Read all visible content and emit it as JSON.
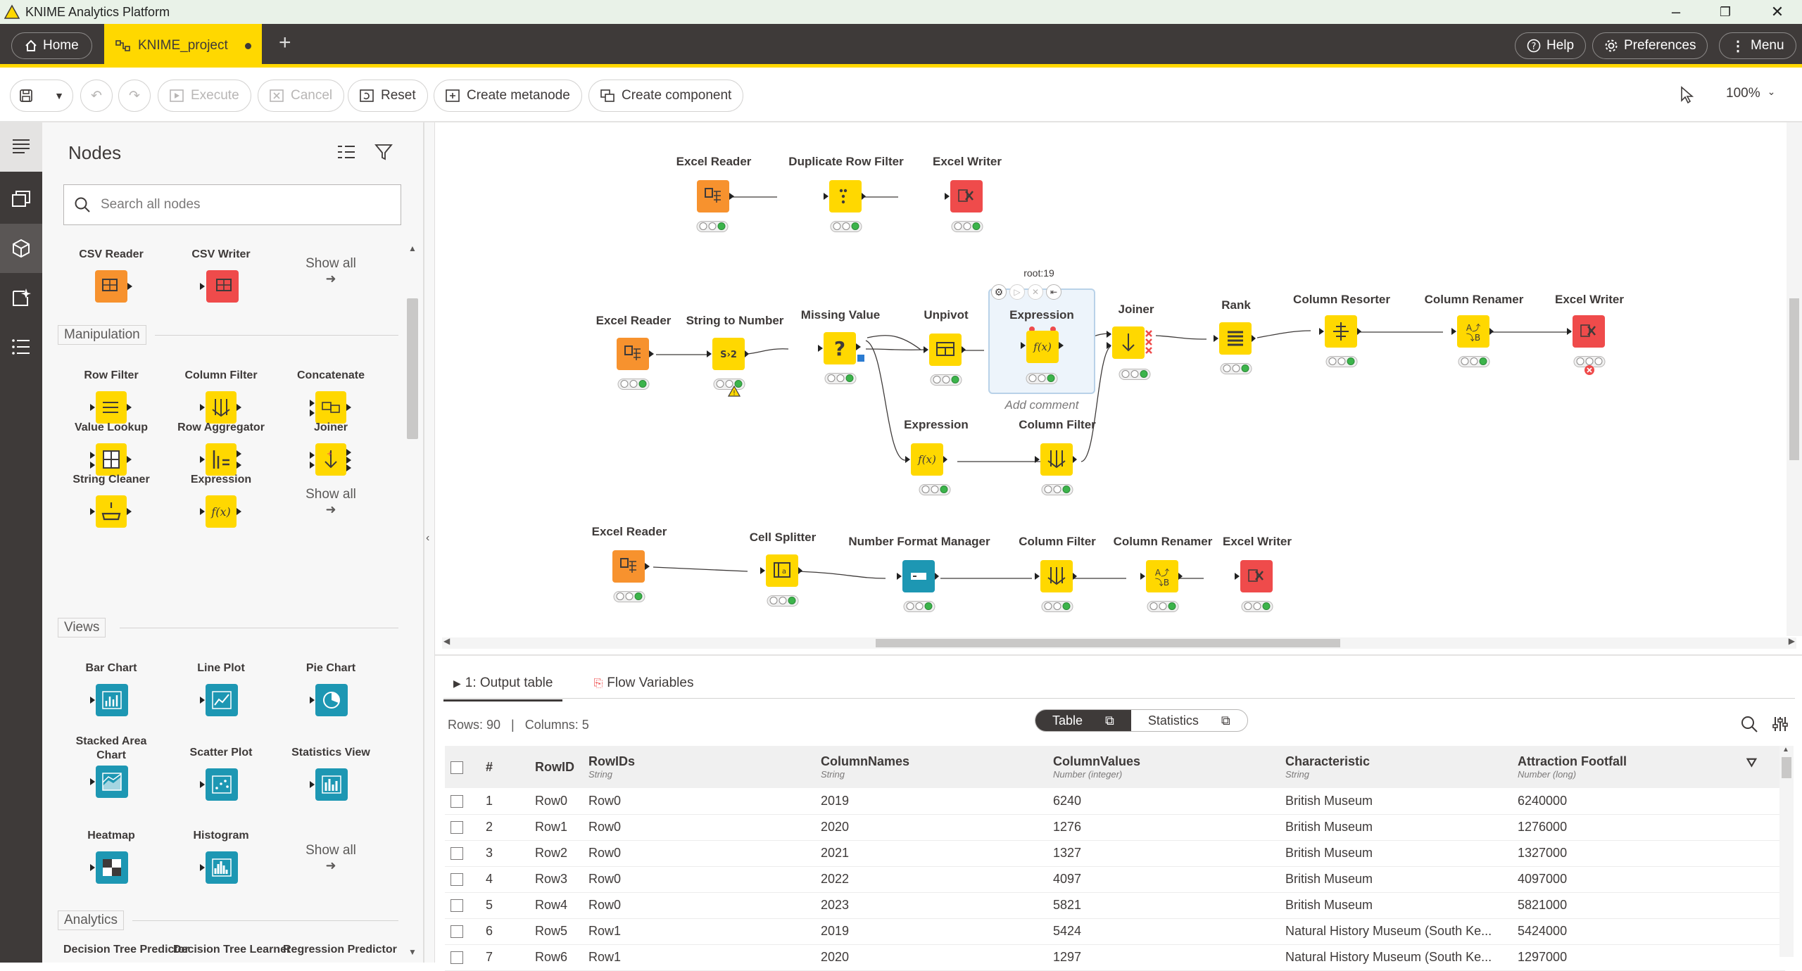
{
  "window": {
    "title": "KNIME Analytics Platform",
    "minimize": "–",
    "restore": "❐",
    "close": "✕"
  },
  "tabs": {
    "home": "Home",
    "project": "KNIME_project",
    "add": "+"
  },
  "header": {
    "help": "Help",
    "preferences": "Preferences",
    "menu": "Menu"
  },
  "toolbar": {
    "execute": "Execute",
    "cancel": "Cancel",
    "reset": "Reset",
    "create_metanode": "Create metanode",
    "create_component": "Create component",
    "zoom": "100%"
  },
  "node_panel": {
    "title": "Nodes",
    "search_placeholder": "Search all nodes",
    "top": [
      {
        "name": "CSV Reader",
        "color": "#f7922e"
      },
      {
        "name": "CSV Writer",
        "color": "#ef4b4b"
      }
    ],
    "show_all": "Show all",
    "categories": {
      "manipulation": "Manipulation",
      "views": "Views",
      "analytics": "Analytics"
    },
    "manipulation": [
      {
        "name": "Row Filter"
      },
      {
        "name": "Column Filter"
      },
      {
        "name": "Concatenate"
      },
      {
        "name": "Value Lookup"
      },
      {
        "name": "Row Aggregator"
      },
      {
        "name": "Joiner"
      },
      {
        "name": "String Cleaner"
      },
      {
        "name": "Expression"
      }
    ],
    "views": [
      {
        "name": "Bar Chart"
      },
      {
        "name": "Line Plot"
      },
      {
        "name": "Pie Chart"
      },
      {
        "name": "Stacked Area Chart"
      },
      {
        "name": "Scatter Plot"
      },
      {
        "name": "Statistics View"
      },
      {
        "name": "Heatmap"
      },
      {
        "name": "Histogram"
      }
    ],
    "analytics": [
      {
        "name": "Decision Tree Predictor"
      },
      {
        "name": "Decision Tree Learner"
      },
      {
        "name": "Regression Predictor"
      }
    ]
  },
  "workflow": {
    "row1": [
      "Excel Reader",
      "Duplicate Row Filter",
      "Excel Writer"
    ],
    "row2": [
      "Excel Reader",
      "String to Number",
      "Missing Value",
      "Unpivot",
      "Expression",
      "Joiner",
      "Rank",
      "Column Resorter",
      "Column Renamer",
      "Excel Writer"
    ],
    "row2b": [
      "Expression",
      "Column Filter"
    ],
    "row3": [
      "Excel Reader",
      "Cell Splitter",
      "Number Format Manager",
      "Column Filter",
      "Column Renamer",
      "Excel Writer"
    ],
    "selected_id": "root:19",
    "add_comment": "Add comment"
  },
  "output": {
    "tab_output": "1: Output table",
    "tab_flow": "Flow Variables",
    "rows": "Rows: 90",
    "columns": "Columns: 5",
    "view_table": "Table",
    "view_stats": "Statistics",
    "headers": [
      {
        "name": "#",
        "type": ""
      },
      {
        "name": "RowID",
        "type": ""
      },
      {
        "name": "RowIDs",
        "type": "String"
      },
      {
        "name": "ColumnNames",
        "type": "String"
      },
      {
        "name": "ColumnValues",
        "type": "Number (integer)"
      },
      {
        "name": "Characteristic",
        "type": "String"
      },
      {
        "name": "Attraction Footfall",
        "type": "Number (long)"
      }
    ],
    "rows_data": [
      [
        "1",
        "Row0",
        "Row0",
        "2019",
        "6240",
        "British Museum",
        "6240000"
      ],
      [
        "2",
        "Row1",
        "Row0",
        "2020",
        "1276",
        "British Museum",
        "1276000"
      ],
      [
        "3",
        "Row2",
        "Row0",
        "2021",
        "1327",
        "British Museum",
        "1327000"
      ],
      [
        "4",
        "Row3",
        "Row0",
        "2022",
        "4097",
        "British Museum",
        "4097000"
      ],
      [
        "5",
        "Row4",
        "Row0",
        "2023",
        "5821",
        "British Museum",
        "5821000"
      ],
      [
        "6",
        "Row5",
        "Row1",
        "2019",
        "5424",
        "Natural History Museum (South Ke...",
        "5424000"
      ],
      [
        "7",
        "Row6",
        "Row1",
        "2020",
        "1297",
        "Natural History Museum (South Ke...",
        "1297000"
      ]
    ]
  },
  "colors": {
    "reader": "#f7922e",
    "manip": "#ffd800",
    "writer": "#ef4b4b",
    "view": "#1d97b3",
    "accent": "#ffd800",
    "dark": "#3e3a39"
  }
}
